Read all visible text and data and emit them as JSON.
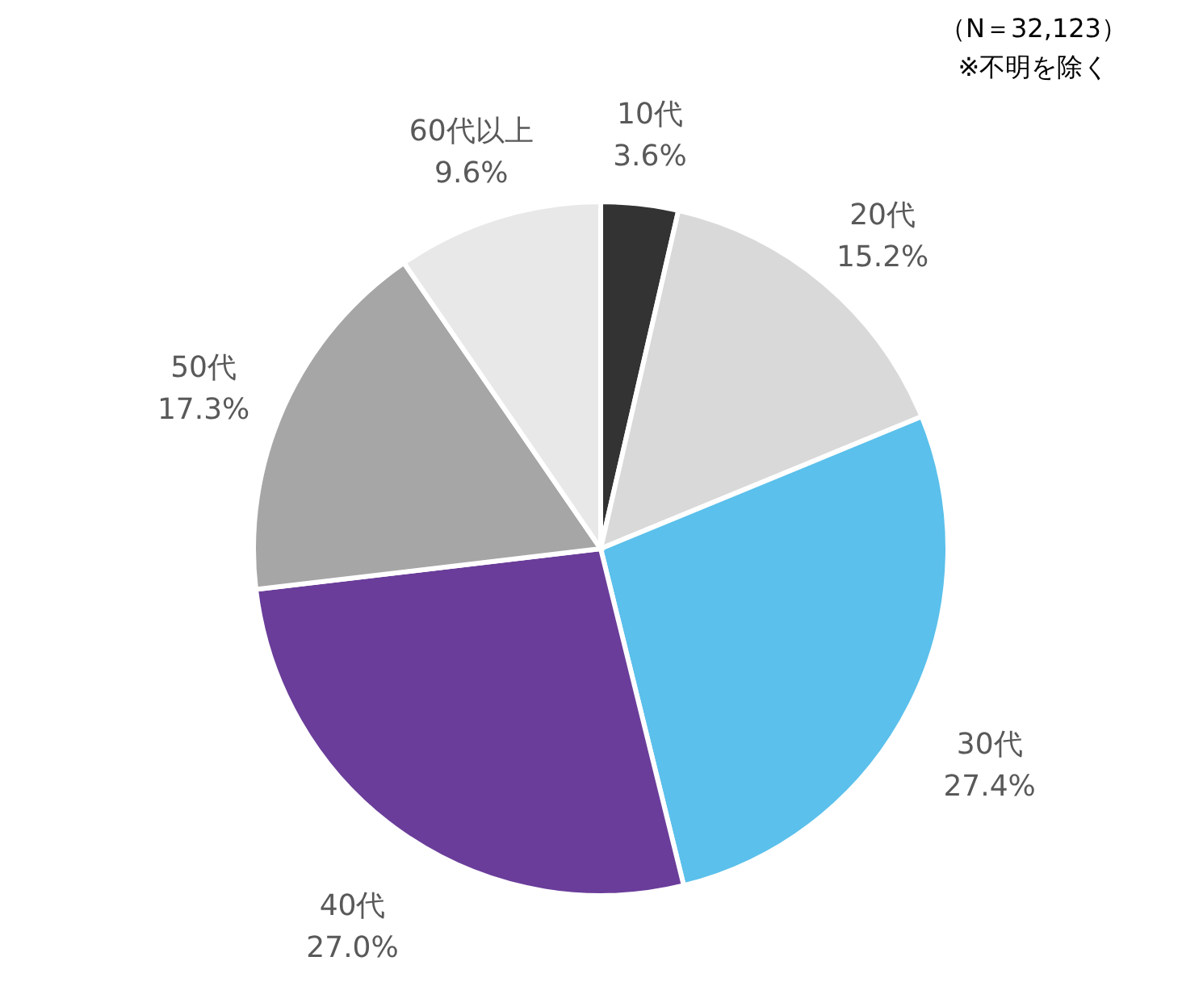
{
  "chart_data": {
    "type": "pie",
    "categories": [
      "10代",
      "20代",
      "30代",
      "40代",
      "50代",
      "60代以上"
    ],
    "values": [
      3.6,
      15.2,
      27.4,
      27.0,
      17.3,
      9.6
    ],
    "colors": [
      "#333333",
      "#d9d9d9",
      "#5bc0eb",
      "#6a3d9a",
      "#a6a6a6",
      "#e8e8e8"
    ],
    "value_labels": [
      "3.6%",
      "15.2%",
      "27.4%",
      "27.0%",
      "17.3%",
      "9.6%"
    ],
    "annotations": [
      "（N＝32,123）",
      "※不明を除く"
    ]
  }
}
